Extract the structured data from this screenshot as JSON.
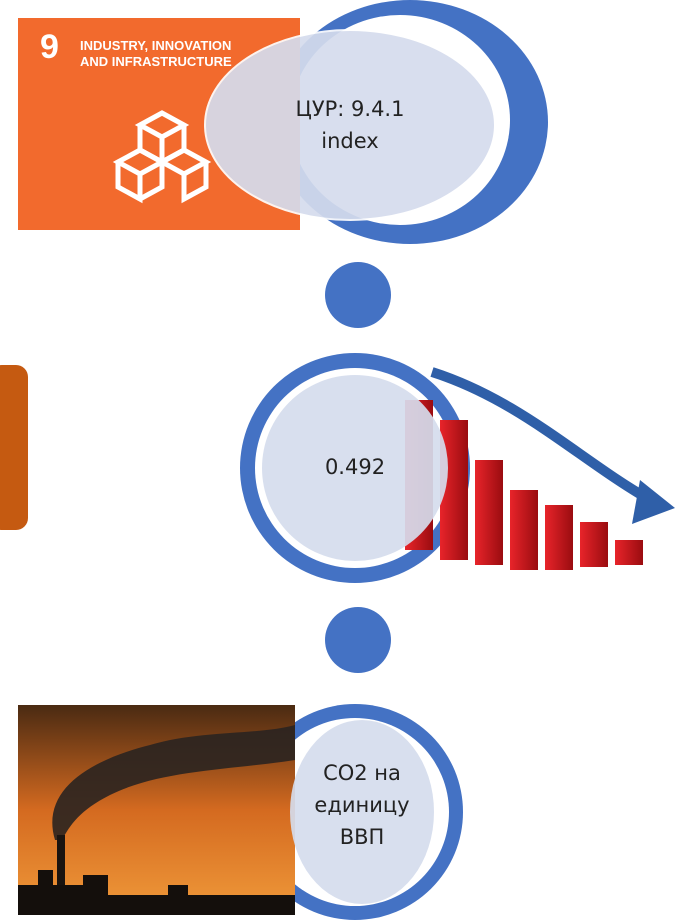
{
  "sdg_icon": {
    "number": "9",
    "title_lines": [
      "INDUSTRY, INNOVATION",
      "AND INFRASTRUCTURE"
    ]
  },
  "nodes": [
    {
      "label_lines": [
        "ЦУР: 9.4.1",
        "index"
      ]
    },
    {
      "label_lines": [
        "0.492"
      ]
    },
    {
      "label_lines": [
        "СО2 на",
        "единицу",
        "ВВП"
      ]
    }
  ]
}
